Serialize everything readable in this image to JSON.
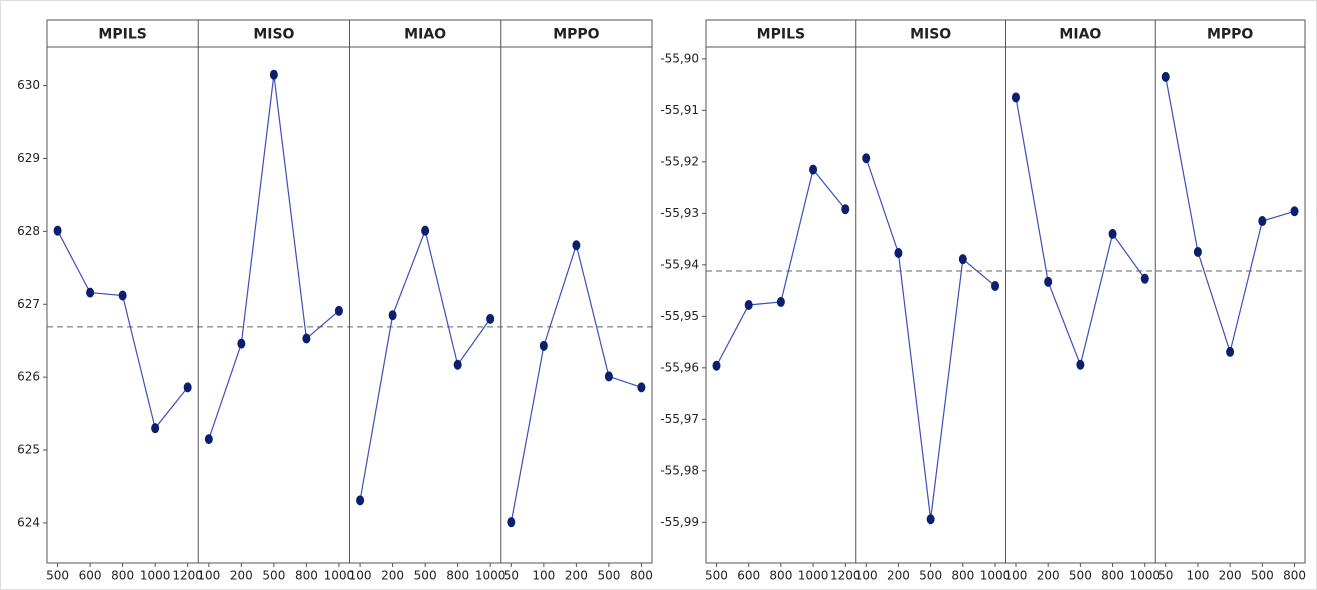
{
  "chart_data": [
    {
      "type": "line",
      "color": "#3a4fb8",
      "marker_color": "#0b1f6e",
      "ylim": [
        623.45,
        630.53
      ],
      "yticks": [
        624,
        625,
        626,
        627,
        628,
        629,
        630
      ],
      "reference_line": 626.69,
      "panels": [
        {
          "name": "MPILS",
          "categories": [
            "500",
            "600",
            "800",
            "1000",
            "1200"
          ],
          "values": [
            628.01,
            627.16,
            627.12,
            625.3,
            625.86
          ]
        },
        {
          "name": "MISO",
          "categories": [
            "100",
            "200",
            "500",
            "800",
            "1000"
          ],
          "values": [
            625.15,
            626.46,
            630.15,
            626.53,
            626.91
          ]
        },
        {
          "name": "MIAO",
          "categories": [
            "100",
            "200",
            "500",
            "800",
            "1000"
          ],
          "values": [
            624.31,
            626.85,
            628.01,
            626.17,
            626.8
          ]
        },
        {
          "name": "MPPO",
          "categories": [
            "50",
            "100",
            "200",
            "500",
            "800"
          ],
          "values": [
            624.01,
            626.43,
            627.81,
            626.01,
            625.86
          ]
        }
      ]
    },
    {
      "type": "line",
      "color": "#3a4fb8",
      "marker_color": "#0b1f6e",
      "ylim": [
        -55.9979,
        -55.8977
      ],
      "yticks": [
        {
          "value": -55.99,
          "label": "-55,99"
        },
        {
          "value": -55.98,
          "label": "-55,98"
        },
        {
          "value": -55.97,
          "label": "-55,97"
        },
        {
          "value": -55.96,
          "label": "-55,96"
        },
        {
          "value": -55.95,
          "label": "-55,95"
        },
        {
          "value": -55.94,
          "label": "-55,94"
        },
        {
          "value": -55.93,
          "label": "-55,93"
        },
        {
          "value": -55.92,
          "label": "-55,92"
        },
        {
          "value": -55.91,
          "label": "-55,91"
        },
        {
          "value": -55.9,
          "label": "-55,90"
        }
      ],
      "reference_line": -55.9412,
      "panels": [
        {
          "name": "MPILS",
          "categories": [
            "500",
            "600",
            "800",
            "1000",
            "1200"
          ],
          "values": [
            -55.9596,
            -55.9478,
            -55.9472,
            -55.9215,
            -55.9292
          ]
        },
        {
          "name": "MISO",
          "categories": [
            "100",
            "200",
            "500",
            "800",
            "1000"
          ],
          "values": [
            -55.9193,
            -55.9377,
            -55.9894,
            -55.9389,
            -55.9441
          ]
        },
        {
          "name": "MIAO",
          "categories": [
            "100",
            "200",
            "500",
            "800",
            "1000"
          ],
          "values": [
            -55.9075,
            -55.9433,
            -55.9594,
            -55.934,
            -55.9427
          ]
        },
        {
          "name": "MPPO",
          "categories": [
            "50",
            "100",
            "200",
            "500",
            "800"
          ],
          "values": [
            -55.9035,
            -55.9375,
            -55.9569,
            -55.9315,
            -55.9296
          ]
        }
      ]
    }
  ]
}
